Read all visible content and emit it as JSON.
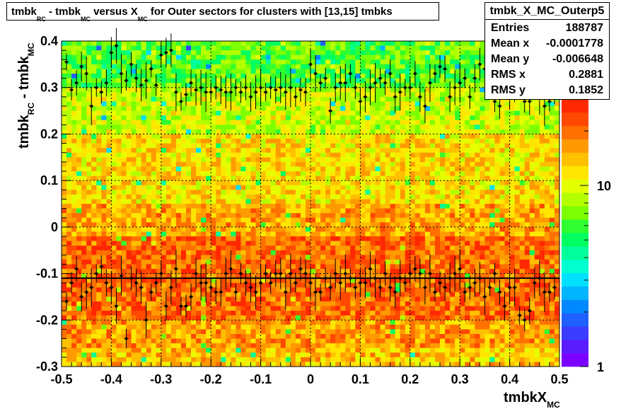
{
  "title": {
    "parts": [
      "tmbk",
      "RC",
      " - tmbk",
      "MC",
      " versus X",
      "MC",
      " for Outer sectors for clusters with [13,15] tmbks"
    ]
  },
  "stats": {
    "name": "tmbk_X_MC_Outerp5",
    "rows": [
      {
        "key": "Entries",
        "value": "188787"
      },
      {
        "key": "Mean x",
        "value": "-0.0001778"
      },
      {
        "key": "Mean y",
        "value": "-0.006648"
      },
      {
        "key": "RMS x",
        "value": "0.2881"
      },
      {
        "key": "RMS y",
        "value": "0.1852"
      }
    ]
  },
  "axes": {
    "xlabel_main": "tmbkX",
    "xlabel_sub": "MC",
    "ylabel_main": "tmbk",
    "ylabel_sub1": "RC",
    "ylabel_mid": " - tmbk",
    "ylabel_sub2": "MC",
    "xticks": [
      "-0.5",
      "-0.4",
      "-0.3",
      "-0.2",
      "-0.1",
      "0",
      "0.1",
      "0.2",
      "0.3",
      "0.4",
      "0.5"
    ],
    "yticks": [
      "-0.3",
      "-0.2",
      "-0.1",
      "0",
      "0.1",
      "0.2",
      "0.3",
      "0.4"
    ],
    "zticks": [
      "1",
      "10"
    ]
  },
  "chart_data": {
    "type": "heatmap",
    "x_range": [
      -0.5,
      0.5
    ],
    "y_range": [
      -0.3,
      0.4
    ],
    "z_range": [
      1,
      30
    ],
    "z_log": true,
    "grid": true,
    "fit_line_y": -0.11,
    "upper_profile": {
      "x": [
        -0.49,
        -0.48,
        -0.47,
        -0.46,
        -0.45,
        -0.44,
        -0.43,
        -0.42,
        -0.41,
        -0.4,
        -0.39,
        -0.38,
        -0.37,
        -0.36,
        -0.35,
        -0.34,
        -0.33,
        -0.32,
        -0.31,
        -0.3,
        -0.29,
        -0.28,
        -0.27,
        -0.26,
        -0.25,
        -0.24,
        -0.23,
        -0.22,
        -0.21,
        -0.2,
        -0.19,
        -0.18,
        -0.17,
        -0.16,
        -0.15,
        -0.14,
        -0.13,
        -0.12,
        -0.11,
        -0.1,
        -0.09,
        -0.08,
        -0.07,
        -0.06,
        -0.05,
        -0.04,
        -0.03,
        -0.02,
        -0.01,
        0.0,
        0.01,
        0.02,
        0.03,
        0.04,
        0.05,
        0.06,
        0.07,
        0.08,
        0.09,
        0.1,
        0.11,
        0.12,
        0.13,
        0.14,
        0.15,
        0.16,
        0.17,
        0.18,
        0.19,
        0.2,
        0.21,
        0.22,
        0.23,
        0.24,
        0.25,
        0.26,
        0.27,
        0.28,
        0.29,
        0.3,
        0.31,
        0.32,
        0.33,
        0.34,
        0.35,
        0.36,
        0.37,
        0.38,
        0.39,
        0.4,
        0.41,
        0.42,
        0.43,
        0.44,
        0.45,
        0.46,
        0.47,
        0.48,
        0.49
      ],
      "y": [
        0.355,
        0.295,
        0.31,
        0.345,
        0.33,
        0.26,
        0.3,
        0.29,
        0.31,
        0.375,
        0.39,
        0.33,
        0.315,
        0.35,
        0.32,
        0.305,
        0.315,
        0.34,
        0.305,
        0.37,
        0.375,
        0.38,
        0.29,
        0.27,
        0.285,
        0.31,
        0.295,
        0.3,
        0.29,
        0.29,
        0.3,
        0.295,
        0.29,
        0.29,
        0.3,
        0.29,
        0.3,
        0.28,
        0.29,
        0.3,
        0.29,
        0.3,
        0.295,
        0.3,
        0.29,
        0.3,
        0.28,
        0.295,
        0.29,
        0.35,
        0.33,
        0.31,
        0.32,
        0.25,
        0.3,
        0.31,
        0.31,
        0.33,
        0.3,
        0.27,
        0.28,
        0.3,
        0.31,
        0.32,
        0.31,
        0.33,
        0.28,
        0.29,
        0.3,
        0.3,
        0.33,
        0.28,
        0.26,
        0.31,
        0.33,
        0.345,
        0.34,
        0.28,
        0.3,
        0.31,
        0.32,
        0.28,
        0.32,
        0.35,
        0.34,
        0.3,
        0.27,
        0.26,
        0.31,
        0.29,
        0.31,
        0.3,
        0.27,
        0.27,
        0.35,
        0.28,
        0.26,
        0.27,
        0.29
      ]
    },
    "lower_profile": {
      "x": [
        -0.49,
        -0.48,
        -0.47,
        -0.46,
        -0.45,
        -0.44,
        -0.43,
        -0.42,
        -0.41,
        -0.4,
        -0.39,
        -0.38,
        -0.37,
        -0.36,
        -0.35,
        -0.34,
        -0.33,
        -0.32,
        -0.31,
        -0.3,
        -0.29,
        -0.28,
        -0.27,
        -0.26,
        -0.25,
        -0.24,
        -0.23,
        -0.22,
        -0.21,
        -0.2,
        -0.19,
        -0.18,
        -0.17,
        -0.16,
        -0.15,
        -0.14,
        -0.13,
        -0.12,
        -0.11,
        -0.1,
        -0.09,
        -0.08,
        -0.07,
        -0.06,
        -0.05,
        -0.04,
        -0.03,
        -0.02,
        -0.01,
        0.0,
        0.01,
        0.02,
        0.03,
        0.04,
        0.05,
        0.06,
        0.07,
        0.08,
        0.09,
        0.1,
        0.11,
        0.12,
        0.13,
        0.14,
        0.15,
        0.16,
        0.17,
        0.18,
        0.19,
        0.2,
        0.21,
        0.22,
        0.23,
        0.24,
        0.25,
        0.26,
        0.27,
        0.28,
        0.29,
        0.3,
        0.31,
        0.32,
        0.33,
        0.34,
        0.35,
        0.36,
        0.37,
        0.38,
        0.39,
        0.4,
        0.41,
        0.42,
        0.43,
        0.44,
        0.45,
        0.46,
        0.47,
        0.48,
        0.49
      ],
      "y": [
        -0.16,
        -0.12,
        -0.09,
        -0.15,
        -0.14,
        -0.13,
        -0.1,
        -0.085,
        -0.12,
        -0.13,
        -0.17,
        -0.105,
        -0.24,
        -0.11,
        -0.12,
        -0.13,
        -0.2,
        -0.14,
        -0.12,
        -0.1,
        -0.17,
        -0.13,
        -0.09,
        -0.17,
        -0.17,
        -0.15,
        -0.1,
        -0.12,
        -0.12,
        -0.13,
        -0.14,
        -0.14,
        -0.1,
        -0.09,
        -0.14,
        -0.1,
        -0.12,
        -0.13,
        -0.14,
        -0.12,
        -0.1,
        -0.12,
        -0.1,
        -0.1,
        -0.14,
        -0.1,
        -0.12,
        -0.09,
        -0.1,
        -0.12,
        -0.14,
        -0.14,
        -0.11,
        -0.13,
        -0.1,
        -0.12,
        -0.1,
        -0.11,
        -0.13,
        -0.12,
        -0.12,
        -0.09,
        -0.11,
        -0.13,
        -0.1,
        -0.13,
        -0.14,
        -0.11,
        -0.12,
        -0.1,
        -0.09,
        -0.1,
        -0.13,
        -0.1,
        -0.14,
        -0.12,
        -0.13,
        -0.11,
        -0.1,
        -0.09,
        -0.14,
        -0.13,
        -0.12,
        -0.11,
        -0.15,
        -0.13,
        -0.1,
        -0.14,
        -0.17,
        -0.13,
        -0.13,
        -0.19,
        -0.2,
        -0.18,
        -0.12,
        -0.11,
        -0.14,
        -0.14,
        -0.13
      ]
    }
  }
}
